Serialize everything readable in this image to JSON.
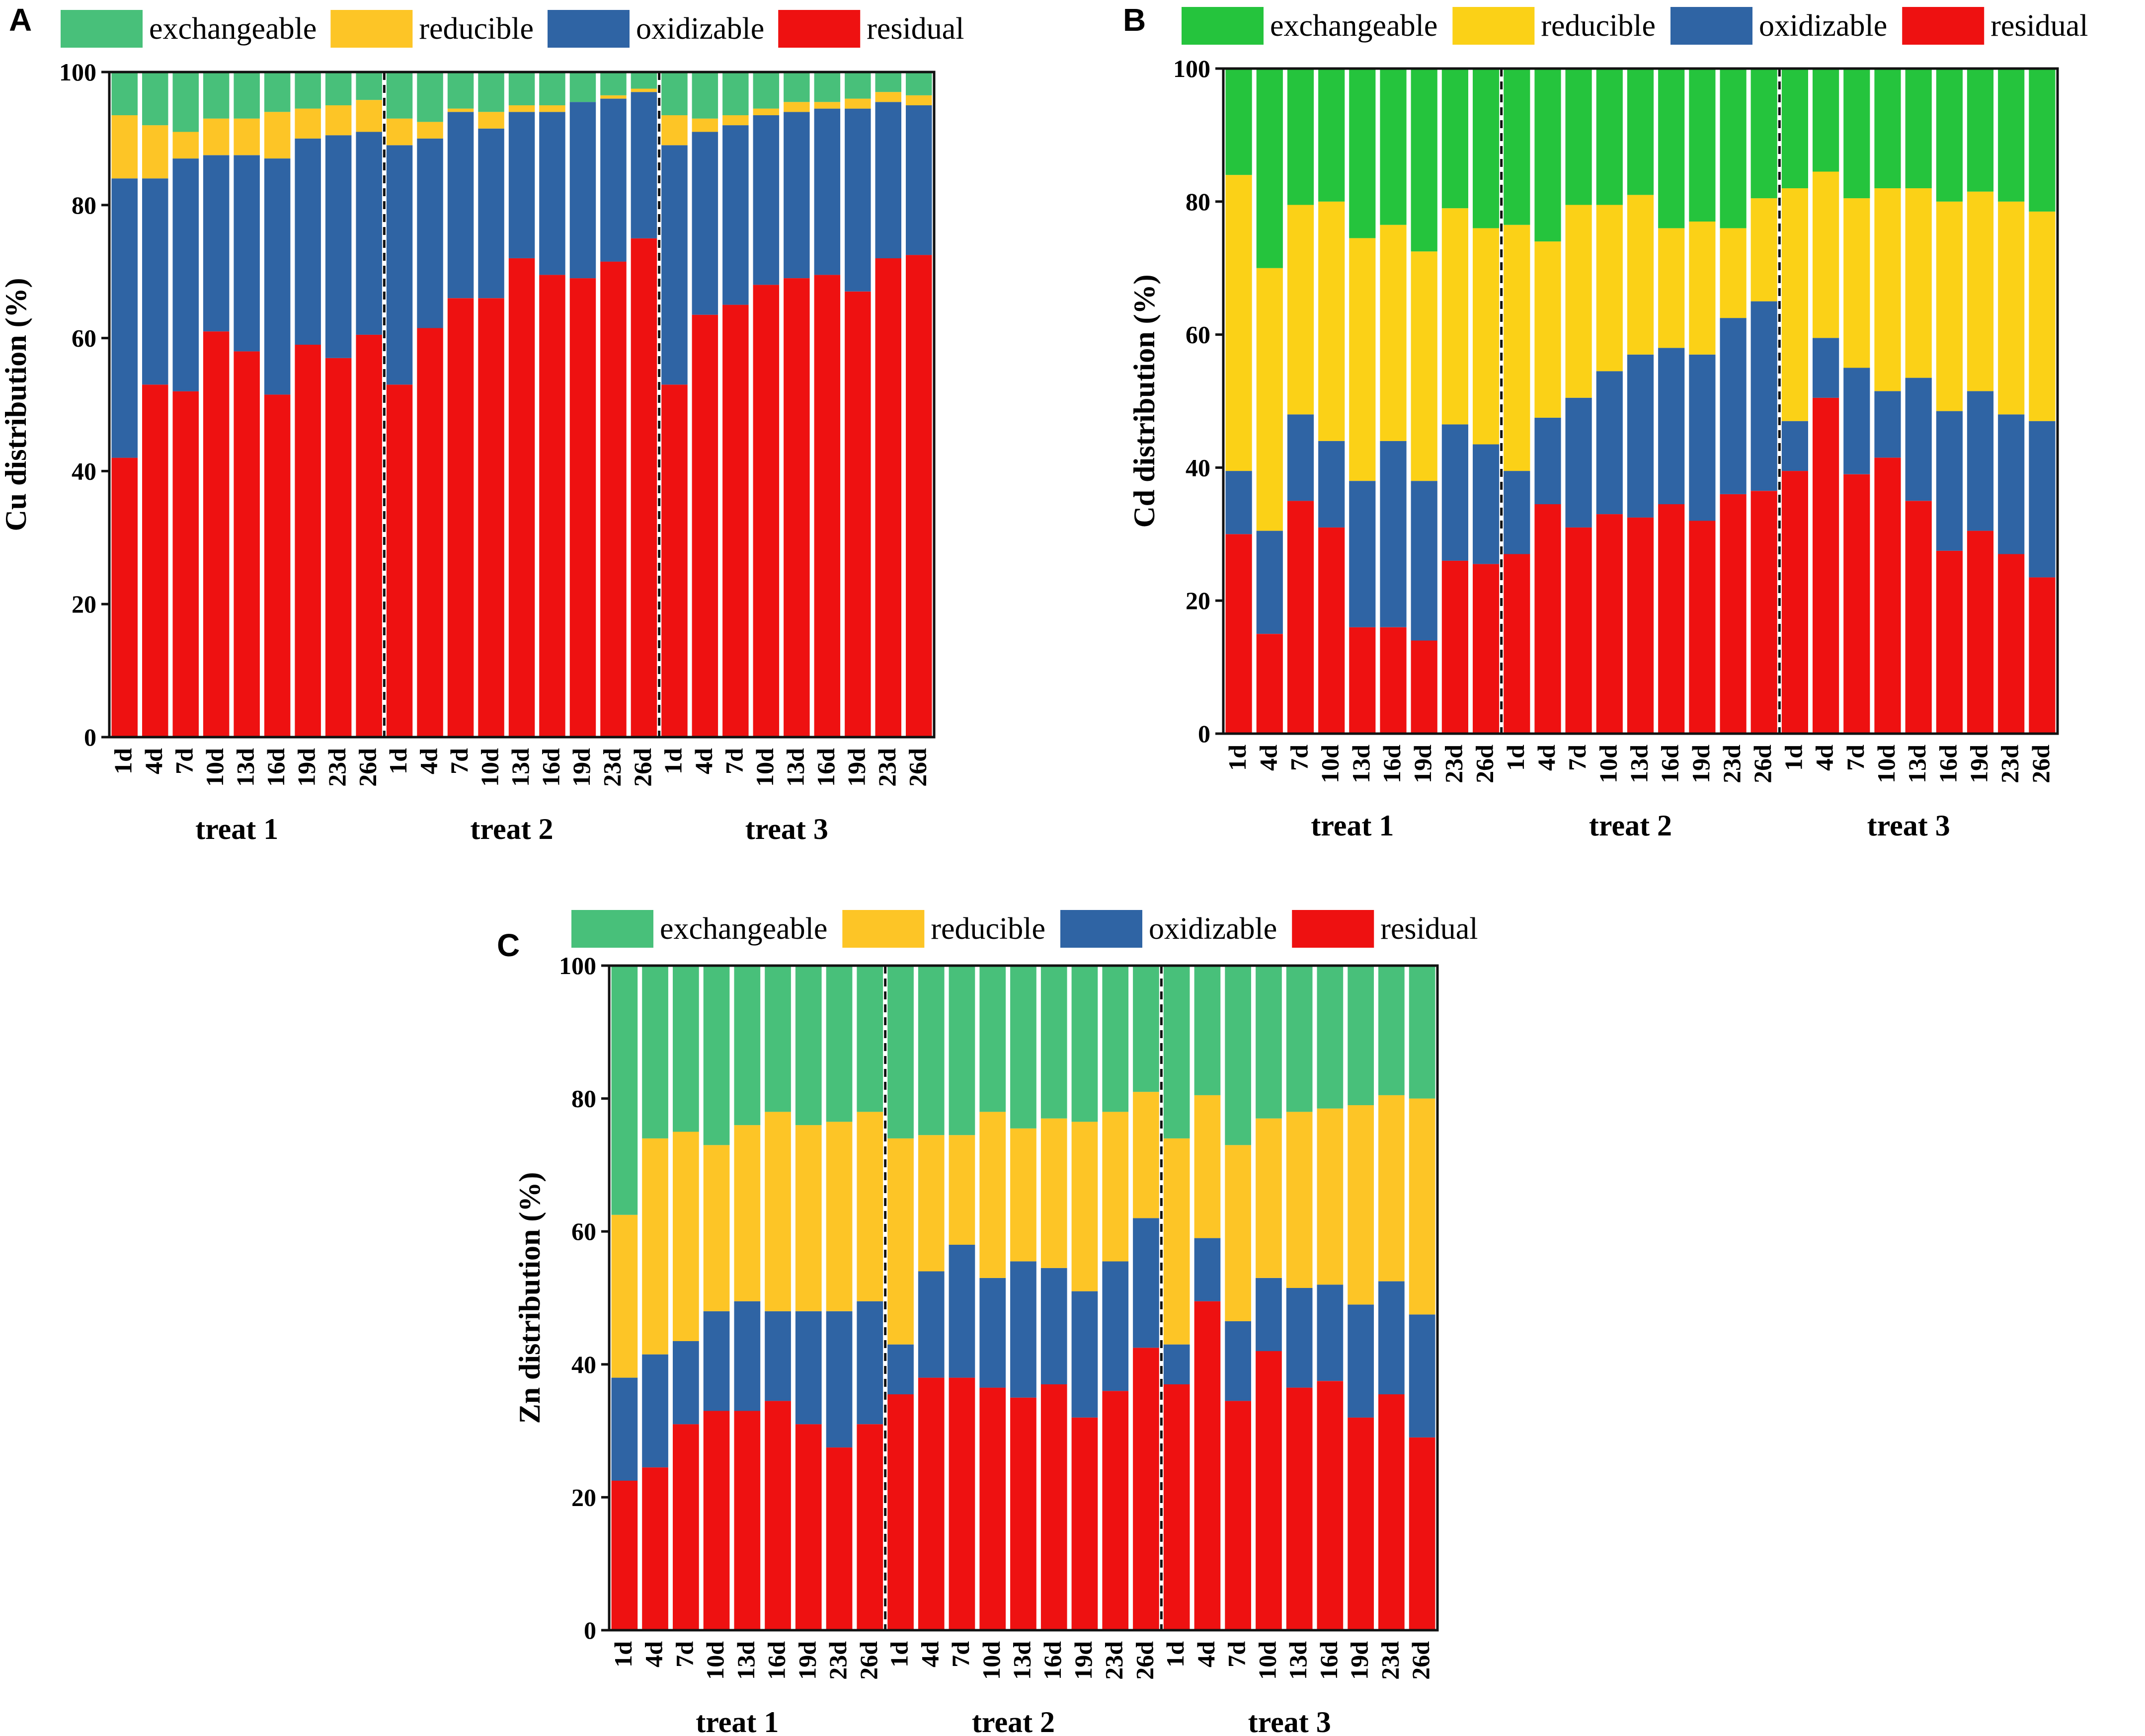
{
  "figure": {
    "legend_labels": [
      "exchangeable",
      "reducible",
      "oxidizable",
      "residual"
    ],
    "categories": [
      "1d",
      "4d",
      "7d",
      "10d",
      "13d",
      "16d",
      "19d",
      "23d",
      "26d"
    ],
    "groups": [
      "treat 1",
      "treat 2",
      "treat 3"
    ],
    "y_ticks": [
      "0",
      "20",
      "40",
      "60",
      "80",
      "100"
    ]
  },
  "chart_data": [
    {
      "panel": "A",
      "type": "bar",
      "stacked": true,
      "ylabel": "Cu distribution (%)",
      "ylim": [
        0,
        100
      ],
      "legend_position": "top",
      "colors": {
        "residual": "#ee1111",
        "oxidizable": "#2f64a4",
        "reducible": "#fdc526",
        "exchangeable": "#48c07a"
      },
      "groups": [
        "treat 1",
        "treat 2",
        "treat 3"
      ],
      "categories": [
        "1d",
        "4d",
        "7d",
        "10d",
        "13d",
        "16d",
        "19d",
        "23d",
        "26d"
      ],
      "series": [
        {
          "name": "residual",
          "values": [
            [
              42,
              53,
              52,
              61,
              58,
              51.5,
              59,
              57,
              60.5
            ],
            [
              53,
              61.5,
              66,
              66,
              72,
              69.5,
              69,
              71.5,
              75
            ],
            [
              53,
              63.5,
              65,
              68,
              69,
              69.5,
              67,
              72,
              72.5
            ]
          ]
        },
        {
          "name": "oxidizable",
          "values": [
            [
              84,
              84,
              87,
              87.5,
              87.5,
              87,
              90,
              90.5,
              91
            ],
            [
              89,
              90,
              94,
              91.5,
              94,
              94,
              95.5,
              96,
              97
            ],
            [
              89,
              91,
              92,
              93.5,
              94,
              94.5,
              94.5,
              95.5,
              95
            ]
          ]
        },
        {
          "name": "reducible",
          "values": [
            [
              93.5,
              92,
              91,
              93,
              93,
              94,
              94.5,
              95,
              95.8
            ],
            [
              93,
              92.5,
              94.5,
              94,
              95,
              95,
              95.5,
              96.5,
              97.5
            ],
            [
              93.5,
              93,
              93.5,
              94.5,
              95.5,
              95.5,
              96,
              97,
              96.5
            ]
          ]
        },
        {
          "name": "exchangeable",
          "values": [
            [
              100,
              100,
              100,
              100,
              100,
              100,
              100,
              100,
              100
            ],
            [
              100,
              100,
              100,
              100,
              100,
              100,
              100,
              100,
              100
            ],
            [
              100,
              100,
              100,
              100,
              100,
              100,
              100,
              100,
              100
            ]
          ]
        }
      ],
      "series_note": "values are cumulative stack tops (%) per group"
    },
    {
      "panel": "B",
      "type": "bar",
      "stacked": true,
      "ylabel": "Cd  distribution (%)",
      "ylim": [
        0,
        100
      ],
      "legend_position": "top",
      "colors": {
        "residual": "#ee1111",
        "oxidizable": "#2f64a4",
        "reducible": "#fbd117",
        "exchangeable": "#25c43d"
      },
      "groups": [
        "treat 1",
        "treat 2",
        "treat 3"
      ],
      "categories": [
        "1d",
        "4d",
        "7d",
        "10d",
        "13d",
        "16d",
        "19d",
        "23d",
        "26d"
      ],
      "series": [
        {
          "name": "residual",
          "values": [
            [
              30,
              15,
              35,
              31,
              16,
              16,
              14,
              26,
              25.5
            ],
            [
              27,
              34.5,
              31,
              33,
              32.5,
              34.5,
              32,
              36,
              36.5
            ],
            [
              39.5,
              50.5,
              39,
              41.5,
              35,
              27.5,
              30.5,
              27,
              23.5
            ]
          ]
        },
        {
          "name": "oxidizable",
          "values": [
            [
              39.5,
              30.5,
              48,
              44,
              38,
              44,
              38,
              46.5,
              43.5
            ],
            [
              39.5,
              47.5,
              50.5,
              54.5,
              57,
              58,
              57,
              62.5,
              65
            ],
            [
              47,
              59.5,
              55,
              51.5,
              53.5,
              48.5,
              51.5,
              48,
              47
            ]
          ]
        },
        {
          "name": "reducible",
          "values": [
            [
              84,
              70,
              79.5,
              80,
              74.5,
              76.5,
              72.5,
              79,
              76
            ],
            [
              76.5,
              74,
              79.5,
              79.5,
              81,
              76,
              77,
              76,
              80.5
            ],
            [
              82,
              84.5,
              80.5,
              82,
              82,
              80,
              81.5,
              80,
              78.5
            ]
          ]
        },
        {
          "name": "exchangeable",
          "values": [
            [
              100,
              100,
              100,
              100,
              100,
              100,
              100,
              100,
              100
            ],
            [
              100,
              100,
              100,
              100,
              100,
              100,
              100,
              100,
              100
            ],
            [
              100,
              100,
              100,
              100,
              100,
              100,
              100,
              100,
              100
            ]
          ]
        }
      ],
      "series_note": "values are cumulative stack tops (%) per group"
    },
    {
      "panel": "C",
      "type": "bar",
      "stacked": true,
      "ylabel": "Zn distribution (%)",
      "ylim": [
        0,
        100
      ],
      "legend_position": "top",
      "colors": {
        "residual": "#ee1111",
        "oxidizable": "#2f64a4",
        "reducible": "#fdc526",
        "exchangeable": "#48c07a"
      },
      "groups": [
        "treat 1",
        "treat 2",
        "treat 3"
      ],
      "categories": [
        "1d",
        "4d",
        "7d",
        "10d",
        "13d",
        "16d",
        "19d",
        "23d",
        "26d"
      ],
      "series": [
        {
          "name": "residual",
          "values": [
            [
              22.5,
              24.5,
              31,
              33,
              33,
              34.5,
              31,
              27.5,
              31
            ],
            [
              35.5,
              38,
              38,
              36.5,
              35,
              37,
              32,
              36,
              42.5
            ],
            [
              37,
              49.5,
              34.5,
              42,
              36.5,
              37.5,
              32,
              35.5,
              29
            ]
          ]
        },
        {
          "name": "oxidizable",
          "values": [
            [
              38,
              41.5,
              43.5,
              48,
              49.5,
              48,
              48,
              48,
              49.5
            ],
            [
              43,
              54,
              58,
              53,
              55.5,
              54.5,
              51,
              55.5,
              62
            ],
            [
              43,
              59,
              46.5,
              53,
              51.5,
              52,
              49,
              52.5,
              47.5
            ]
          ]
        },
        {
          "name": "reducible",
          "values": [
            [
              62.5,
              74,
              75,
              73,
              76,
              78,
              76,
              76.5,
              78
            ],
            [
              74,
              74.5,
              74.5,
              78,
              75.5,
              77,
              76.5,
              78,
              81
            ],
            [
              74,
              80.5,
              73,
              77,
              78,
              78.5,
              79,
              80.5,
              80
            ]
          ]
        },
        {
          "name": "exchangeable",
          "values": [
            [
              100,
              100,
              100,
              100,
              100,
              100,
              100,
              100,
              100
            ],
            [
              100,
              100,
              100,
              100,
              100,
              100,
              100,
              100,
              100
            ],
            [
              100,
              100,
              100,
              100,
              100,
              100,
              100,
              100,
              100
            ]
          ]
        }
      ],
      "series_note": "values are cumulative stack tops (%) per group"
    }
  ]
}
